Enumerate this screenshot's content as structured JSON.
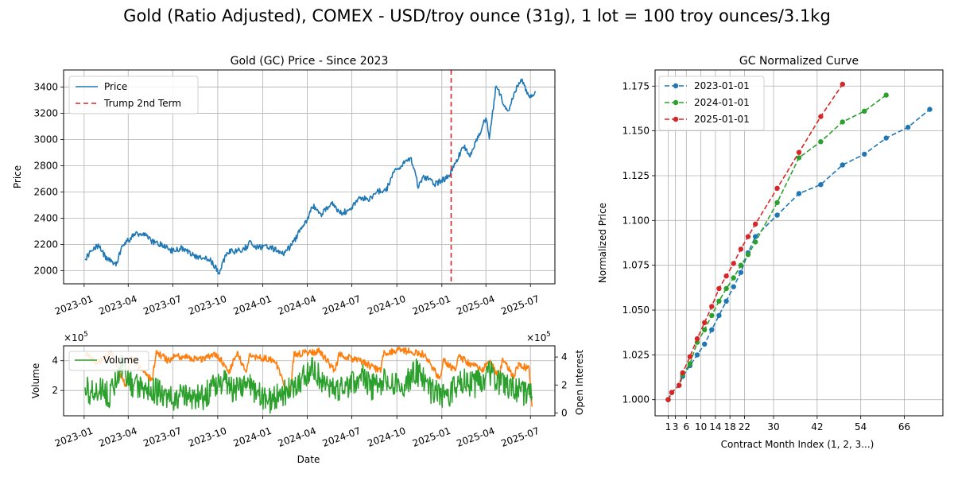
{
  "figure": {
    "suptitle": "Gold (Ratio Adjusted), COMEX - USD/troy ounce (31g), 1 lot = 100 troy ounces/3.1kg"
  },
  "colors": {
    "price": "#1f77b4",
    "trump": "#d62728",
    "volume": "#2ca02c",
    "open_interest": "#ff7f0e",
    "c2023": "#1f77b4",
    "c2024": "#2ca02c",
    "c2025": "#d62728",
    "grid": "#b0b0b0"
  },
  "chart_data": [
    {
      "type": "line",
      "title": "Gold (GC) Price - Since 2023",
      "xlabel": "",
      "ylabel": "Price",
      "x_ticks": [
        "2023-01",
        "2023-04",
        "2023-07",
        "2023-10",
        "2024-01",
        "2024-04",
        "2024-07",
        "2024-10",
        "2025-01",
        "2025-04",
        "2025-07"
      ],
      "xlim": [
        "2022-11-20",
        "2025-08-20"
      ],
      "ylim": [
        1900,
        3530
      ],
      "y_ticks": [
        2000,
        2200,
        2400,
        2600,
        2800,
        3000,
        3200,
        3400
      ],
      "grid": true,
      "legend": "upper left",
      "series": [
        {
          "name": "Price",
          "anchors": [
            [
              "2023-01-03",
              2090
            ],
            [
              "2023-01-20",
              2170
            ],
            [
              "2023-02-01",
              2190
            ],
            [
              "2023-02-10",
              2120
            ],
            [
              "2023-02-28",
              2060
            ],
            [
              "2023-03-08",
              2040
            ],
            [
              "2023-03-20",
              2200
            ],
            [
              "2023-04-05",
              2240
            ],
            [
              "2023-04-14",
              2280
            ],
            [
              "2023-05-04",
              2270
            ],
            [
              "2023-05-25",
              2210
            ],
            [
              "2023-06-10",
              2200
            ],
            [
              "2023-06-30",
              2150
            ],
            [
              "2023-07-20",
              2170
            ],
            [
              "2023-08-10",
              2120
            ],
            [
              "2023-08-25",
              2100
            ],
            [
              "2023-09-15",
              2090
            ],
            [
              "2023-10-04",
              1980
            ],
            [
              "2023-10-20",
              2140
            ],
            [
              "2023-11-10",
              2150
            ],
            [
              "2023-11-30",
              2180
            ],
            [
              "2023-12-04",
              2220
            ],
            [
              "2023-12-20",
              2180
            ],
            [
              "2024-01-15",
              2180
            ],
            [
              "2024-02-14",
              2130
            ],
            [
              "2024-03-01",
              2200
            ],
            [
              "2024-03-15",
              2290
            ],
            [
              "2024-04-01",
              2380
            ],
            [
              "2024-04-12",
              2500
            ],
            [
              "2024-04-30",
              2430
            ],
            [
              "2024-05-20",
              2520
            ],
            [
              "2024-06-07",
              2440
            ],
            [
              "2024-06-28",
              2460
            ],
            [
              "2024-07-17",
              2560
            ],
            [
              "2024-08-05",
              2540
            ],
            [
              "2024-08-20",
              2600
            ],
            [
              "2024-09-10",
              2620
            ],
            [
              "2024-09-26",
              2760
            ],
            [
              "2024-10-30",
              2860
            ],
            [
              "2024-11-14",
              2640
            ],
            [
              "2024-11-25",
              2720
            ],
            [
              "2024-12-19",
              2660
            ],
            [
              "2025-01-15",
              2720
            ],
            [
              "2025-01-31",
              2840
            ],
            [
              "2025-02-14",
              2950
            ],
            [
              "2025-02-28",
              2880
            ],
            [
              "2025-03-20",
              3060
            ],
            [
              "2025-04-02",
              3170
            ],
            [
              "2025-04-08",
              3000
            ],
            [
              "2025-04-22",
              3420
            ],
            [
              "2025-05-15",
              3200
            ],
            [
              "2025-06-03",
              3390
            ],
            [
              "2025-06-13",
              3450
            ],
            [
              "2025-06-30",
              3320
            ],
            [
              "2025-07-11",
              3370
            ]
          ]
        },
        {
          "name": "Trump 2nd Term",
          "x": "2025-01-20"
        }
      ]
    },
    {
      "type": "line",
      "title": "",
      "xlabel": "Date",
      "ylabel": "Volume",
      "y2label": "Open Interest",
      "x_ticks": [
        "2023-01",
        "2023-04",
        "2023-07",
        "2023-10",
        "2024-01",
        "2024-04",
        "2024-07",
        "2024-10",
        "2025-01",
        "2025-04",
        "2025-07"
      ],
      "ylim": [
        30000,
        500000
      ],
      "y_ticks": [
        200000,
        400000
      ],
      "y_tick_labels": [
        "2",
        "4"
      ],
      "y2lim": [
        -20000,
        480000
      ],
      "y2_ticks": [
        0,
        200000,
        400000
      ],
      "y2_tick_labels": [
        "0",
        "2",
        "4"
      ],
      "offset_text": "×10",
      "offset_exp": "5",
      "grid": true,
      "legend": "upper left",
      "series": [
        {
          "name": "Volume",
          "anchors": [
            [
              "2023-01-03",
              220000
            ],
            [
              "2023-01-15",
              170000
            ],
            [
              "2023-02-01",
              230000
            ],
            [
              "2023-02-20",
              160000
            ],
            [
              "2023-03-10",
              300000
            ],
            [
              "2023-03-20",
              380000
            ],
            [
              "2023-04-10",
              240000
            ],
            [
              "2023-05-05",
              200000
            ],
            [
              "2023-06-01",
              190000
            ],
            [
              "2023-06-30",
              150000
            ],
            [
              "2023-08-01",
              160000
            ],
            [
              "2023-09-01",
              150000
            ],
            [
              "2023-10-06",
              270000
            ],
            [
              "2023-11-01",
              200000
            ],
            [
              "2023-12-05",
              230000
            ],
            [
              "2024-01-10",
              120000
            ],
            [
              "2024-02-10",
              180000
            ],
            [
              "2024-03-10",
              220000
            ],
            [
              "2024-04-12",
              360000
            ],
            [
              "2024-05-10",
              240000
            ],
            [
              "2024-06-10",
              210000
            ],
            [
              "2024-07-20",
              300000
            ],
            [
              "2024-08-10",
              220000
            ],
            [
              "2024-09-10",
              280000
            ],
            [
              "2024-10-10",
              220000
            ],
            [
              "2024-11-10",
              330000
            ],
            [
              "2024-12-10",
              200000
            ],
            [
              "2025-01-10",
              150000
            ],
            [
              "2025-02-10",
              260000
            ],
            [
              "2025-03-10",
              240000
            ],
            [
              "2025-04-10",
              320000
            ],
            [
              "2025-05-10",
              220000
            ],
            [
              "2025-06-10",
              200000
            ],
            [
              "2025-07-05",
              160000
            ]
          ]
        },
        {
          "name": "Open Interest",
          "anchors": [
            [
              "2023-01-03",
              420000
            ],
            [
              "2023-01-28",
              360000
            ],
            [
              "2023-02-25",
              430000
            ],
            [
              "2023-03-28",
              180000
            ],
            [
              "2023-04-05",
              400000
            ],
            [
              "2023-04-25",
              320000
            ],
            [
              "2023-05-20",
              230000
            ],
            [
              "2023-05-28",
              430000
            ],
            [
              "2023-06-25",
              370000
            ],
            [
              "2023-07-02",
              410000
            ],
            [
              "2023-08-25",
              380000
            ],
            [
              "2023-09-28",
              420000
            ],
            [
              "2023-10-25",
              300000
            ],
            [
              "2023-11-10",
              430000
            ],
            [
              "2023-11-28",
              280000
            ],
            [
              "2023-12-05",
              410000
            ],
            [
              "2024-01-25",
              380000
            ],
            [
              "2024-02-25",
              120000
            ],
            [
              "2024-03-05",
              420000
            ],
            [
              "2024-03-28",
              430000
            ],
            [
              "2024-04-25",
              440000
            ],
            [
              "2024-05-28",
              300000
            ],
            [
              "2024-06-05",
              420000
            ],
            [
              "2024-07-25",
              360000
            ],
            [
              "2024-08-28",
              300000
            ],
            [
              "2024-09-05",
              430000
            ],
            [
              "2024-10-10",
              450000
            ],
            [
              "2024-11-25",
              420000
            ],
            [
              "2024-12-28",
              240000
            ],
            [
              "2025-01-05",
              380000
            ],
            [
              "2025-01-28",
              300000
            ],
            [
              "2025-02-05",
              400000
            ],
            [
              "2025-03-25",
              300000
            ],
            [
              "2025-04-05",
              380000
            ],
            [
              "2025-04-28",
              260000
            ],
            [
              "2025-05-05",
              380000
            ],
            [
              "2025-05-28",
              260000
            ],
            [
              "2025-06-05",
              340000
            ],
            [
              "2025-06-28",
              320000
            ],
            [
              "2025-07-05",
              10000
            ]
          ]
        }
      ]
    },
    {
      "type": "line",
      "title": "GC Normalized Curve",
      "xlabel": "Contract Month Index (1, 2, 3...)",
      "ylabel": "Normalized Price",
      "x_ticks": [
        1,
        3,
        6,
        10,
        14,
        18,
        22,
        30,
        42,
        54,
        66
      ],
      "xlim": [
        -2.6,
        76.6
      ],
      "ylim": [
        0.991,
        1.184
      ],
      "y_ticks": [
        1.0,
        1.025,
        1.05,
        1.075,
        1.1,
        1.125,
        1.15,
        1.175
      ],
      "y_tick_labels": [
        "1.000",
        "1.025",
        "1.050",
        "1.075",
        "1.100",
        "1.125",
        "1.150",
        "1.175"
      ],
      "grid": true,
      "legend": "upper left",
      "series": [
        {
          "name": "2023-01-01",
          "x": [
            1,
            2,
            4,
            5,
            7,
            9,
            11,
            13,
            15,
            17,
            19,
            21,
            23,
            25,
            31,
            37,
            43,
            49,
            55,
            61,
            67,
            73
          ],
          "y": [
            1.0,
            1.004,
            1.008,
            1.013,
            1.019,
            1.025,
            1.031,
            1.039,
            1.047,
            1.055,
            1.063,
            1.071,
            1.082,
            1.091,
            1.103,
            1.115,
            1.12,
            1.131,
            1.137,
            1.146,
            1.152,
            1.162
          ]
        },
        {
          "name": "2024-01-01",
          "x": [
            1,
            2,
            4,
            5,
            7,
            9,
            11,
            13,
            15,
            17,
            19,
            21,
            23,
            25,
            31,
            37,
            43,
            49,
            55,
            61
          ],
          "y": [
            1.0,
            1.004,
            1.008,
            1.014,
            1.02,
            1.032,
            1.039,
            1.047,
            1.055,
            1.062,
            1.068,
            1.075,
            1.081,
            1.088,
            1.11,
            1.135,
            1.144,
            1.155,
            1.161,
            1.17
          ]
        },
        {
          "name": "2025-01-01",
          "x": [
            1,
            2,
            4,
            5,
            7,
            9,
            11,
            13,
            15,
            17,
            19,
            21,
            23,
            25,
            31,
            37,
            43,
            49
          ],
          "y": [
            1.0,
            1.004,
            1.008,
            1.015,
            1.024,
            1.034,
            1.043,
            1.052,
            1.062,
            1.069,
            1.076,
            1.084,
            1.091,
            1.098,
            1.118,
            1.138,
            1.158,
            1.176
          ]
        }
      ]
    }
  ]
}
